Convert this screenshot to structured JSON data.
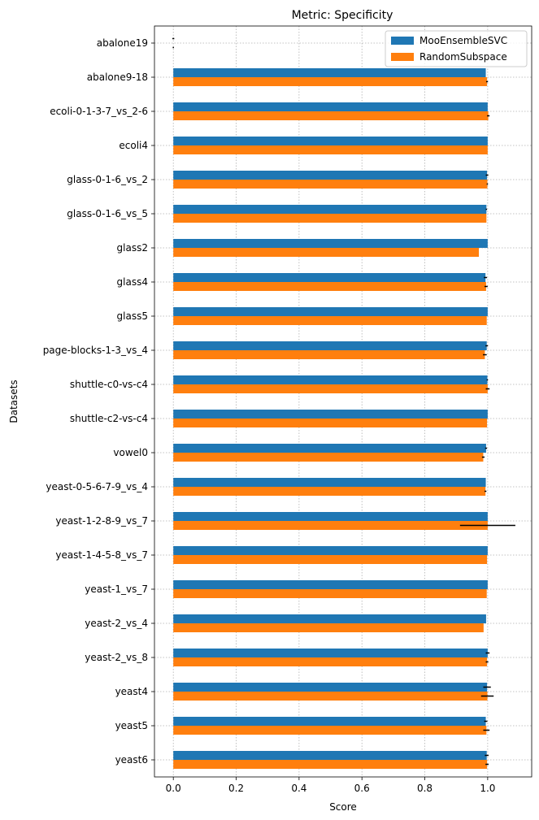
{
  "chart_data": {
    "type": "bar",
    "orientation": "horizontal",
    "title": "Metric: Specificity",
    "xlabel": "Score",
    "ylabel": "Datasets",
    "xlim": [
      -0.06,
      1.14
    ],
    "xticks": [
      "0.0",
      "0.2",
      "0.4",
      "0.6",
      "0.8",
      "1.0"
    ],
    "grid": true,
    "legend_position": "top-right",
    "categories": [
      "abalone19",
      "abalone9-18",
      "ecoli-0-1-3-7_vs_2-6",
      "ecoli4",
      "glass-0-1-6_vs_2",
      "glass-0-1-6_vs_5",
      "glass2",
      "glass4",
      "glass5",
      "page-blocks-1-3_vs_4",
      "shuttle-c0-vs-c4",
      "shuttle-c2-vs-c4",
      "vowel0",
      "yeast-0-5-6-7-9_vs_4",
      "yeast-1-2-8-9_vs_7",
      "yeast-1-4-5-8_vs_7",
      "yeast-1_vs_7",
      "yeast-2_vs_4",
      "yeast-2_vs_8",
      "yeast4",
      "yeast5",
      "yeast6"
    ],
    "series": [
      {
        "name": "MooEnsembleSVC",
        "color": "#1f77b4",
        "values": [
          0.0,
          0.994,
          1.0,
          1.0,
          0.998,
          0.996,
          1.0,
          0.993,
          1.0,
          0.997,
          0.999,
          1.0,
          0.995,
          0.994,
          1.0,
          1.0,
          1.0,
          0.995,
          1.0,
          0.998,
          0.994,
          0.997
        ],
        "errors": [
          0.003,
          0.0,
          0.0,
          0.0,
          0.004,
          0.002,
          0.0,
          0.005,
          0.0,
          0.004,
          0.002,
          0.0,
          0.003,
          0.0,
          0.0,
          0.0,
          0.0,
          0.0,
          0.006,
          0.012,
          0.005,
          0.006
        ]
      },
      {
        "name": "RandomSubspace",
        "color": "#ff7f0e",
        "values": [
          0.0,
          0.998,
          1.002,
          1.0,
          0.999,
          0.996,
          0.972,
          0.995,
          0.997,
          0.991,
          1.0,
          0.998,
          0.986,
          0.993,
          1.0,
          0.998,
          0.997,
          0.987,
          0.998,
          0.999,
          0.996,
          0.998
        ],
        "errors": [
          0.002,
          0.003,
          0.004,
          0.0,
          0.002,
          0.0,
          0.0,
          0.005,
          0.0,
          0.006,
          0.006,
          0.0,
          0.004,
          0.003,
          0.088,
          0.0,
          0.0,
          0.0,
          0.004,
          0.02,
          0.01,
          0.005
        ]
      }
    ]
  }
}
